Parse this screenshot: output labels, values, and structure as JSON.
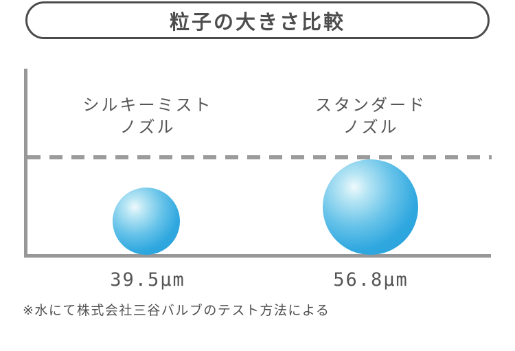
{
  "title": "粒子の大きさ比較",
  "groups": [
    {
      "label": "シルキーミスト\nノズル",
      "value_label": "39.5μm",
      "value": 39.5
    },
    {
      "label": "スタンダード\nノズル",
      "value_label": "56.8μm",
      "value": 56.8
    }
  ],
  "footnote": "※水にて株式会社三谷バルブのテスト方法による",
  "colors": {
    "sphere_main": "#2aa3de",
    "sphere_highlight": "#eef9fc",
    "axis_gray": "#979797",
    "dash_gray": "#9b9b9b",
    "text_gray": "#555555",
    "title_border": "#4b4b4b"
  },
  "chart_data": {
    "type": "bubble",
    "title": "粒子の大きさ比較",
    "categories": [
      "シルキーミスト ノズル",
      "スタンダード ノズル"
    ],
    "values": [
      39.5,
      56.8
    ],
    "unit": "μm",
    "value_labels": [
      "39.5μm",
      "56.8μm"
    ],
    "note": "※水にて株式会社三谷バルブのテスト方法による",
    "layout": {
      "bubbles_sit_on_x_axis": true,
      "bubble_diameters_proportional_to_values": true,
      "reference_line": "horizontal dashed gray line touching top of larger bubble",
      "axes": "plain L-shaped gray axes, no ticks, no tick labels",
      "legend": "none"
    }
  }
}
